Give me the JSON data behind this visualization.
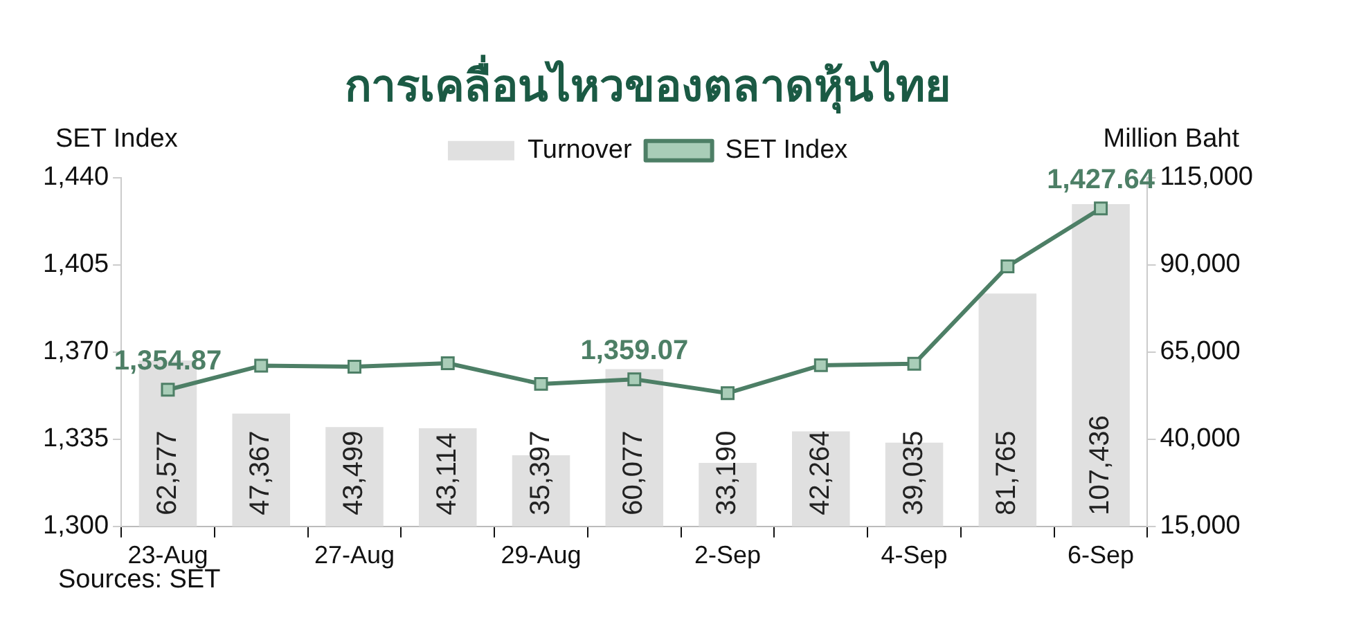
{
  "chart_data": {
    "type": "bar",
    "title": "การเคลื่อนไหวของตลาดหุ้นไทย",
    "ylabel": "SET Index",
    "y2label": "Million Baht",
    "categories": [
      "23-Aug",
      null,
      "27-Aug",
      null,
      "29-Aug",
      null,
      "2-Sep",
      null,
      "4-Sep",
      null,
      "6-Sep"
    ],
    "series": [
      {
        "name": "Turnover",
        "axis": "y2",
        "color": "#e0e0e0",
        "values": [
          62577,
          47367,
          43499,
          43114,
          35397,
          60077,
          33190,
          42264,
          39035,
          81765,
          107436
        ],
        "value_labels": [
          "62,577",
          "47,367",
          "43,499",
          "43,114",
          "35,397",
          "60,077",
          "33,190",
          "42,264",
          "39,035",
          "81,765",
          "107,436"
        ]
      },
      {
        "name": "SET Index",
        "type": "line",
        "axis": "y",
        "color": "#4d7f66",
        "marker": "square",
        "values": [
          1354.87,
          1364.5,
          1364.1,
          1365.5,
          1357.2,
          1359.07,
          1353.5,
          1364.7,
          1365.3,
          1404.4,
          1427.64
        ],
        "value_labels": [
          "1,354.87",
          null,
          null,
          null,
          null,
          "1,359.07",
          null,
          null,
          null,
          null,
          "1,427.64"
        ]
      }
    ],
    "ylim": [
      1300,
      1440
    ],
    "yticks": [
      {
        "value": 1300,
        "label": "1,300"
      },
      {
        "value": 1335,
        "label": "1,335"
      },
      {
        "value": 1370,
        "label": "1,370"
      },
      {
        "value": 1405,
        "label": "1,405"
      },
      {
        "value": 1440,
        "label": "1,440"
      }
    ],
    "y2lim": [
      15000,
      115000
    ],
    "y2ticks": [
      {
        "value": 15000,
        "label": "15,000"
      },
      {
        "value": 40000,
        "label": "40,000"
      },
      {
        "value": 65000,
        "label": "65,000"
      },
      {
        "value": 90000,
        "label": "90,000"
      },
      {
        "value": 115000,
        "label": "115,000"
      }
    ],
    "legend": "top",
    "annotations": [
      "Sources: SET"
    ]
  }
}
